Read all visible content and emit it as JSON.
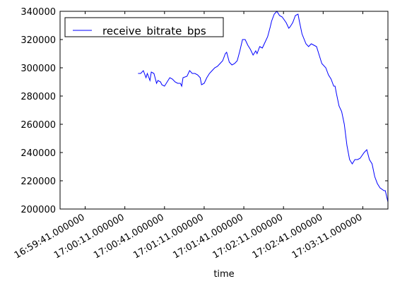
{
  "chart_data": {
    "type": "line",
    "xlabel": "time",
    "x": [
      "17:00:21",
      "17:00:23",
      "17:00:25",
      "17:00:27",
      "17:00:28",
      "17:00:30",
      "17:00:31",
      "17:00:33",
      "17:00:35",
      "17:00:36",
      "17:00:38",
      "17:00:39",
      "17:00:41",
      "17:00:43",
      "17:00:45",
      "17:00:47",
      "17:00:49",
      "17:00:51",
      "17:00:53",
      "17:00:54",
      "17:00:55",
      "17:00:58",
      "17:01:00",
      "17:01:02",
      "17:01:04",
      "17:01:06",
      "17:01:08",
      "17:01:09",
      "17:01:11",
      "17:01:13",
      "17:01:15",
      "17:01:17",
      "17:01:19",
      "17:01:21",
      "17:01:23",
      "17:01:25",
      "17:01:27",
      "17:01:28",
      "17:01:30",
      "17:01:32",
      "17:01:34",
      "17:01:36",
      "17:01:38",
      "17:01:40",
      "17:01:42",
      "17:01:44",
      "17:01:46",
      "17:01:48",
      "17:01:50",
      "17:01:51",
      "17:01:53",
      "17:01:55",
      "17:01:57",
      "17:01:59",
      "17:02:01",
      "17:02:02",
      "17:02:04",
      "17:02:06",
      "17:02:08",
      "17:02:10",
      "17:02:13",
      "17:02:15",
      "17:02:16",
      "17:02:18",
      "17:02:20",
      "17:02:22",
      "17:02:23",
      "17:02:25",
      "17:02:28",
      "17:02:30",
      "17:02:32",
      "17:02:34",
      "17:02:36",
      "17:02:38",
      "17:02:40",
      "17:02:43",
      "17:02:45",
      "17:02:47",
      "17:02:49",
      "17:02:50",
      "17:02:51",
      "17:02:53",
      "17:02:55",
      "17:02:57",
      "17:02:59",
      "17:03:01",
      "17:03:03",
      "17:03:05",
      "17:03:07",
      "17:03:09",
      "17:03:12",
      "17:03:14",
      "17:03:16",
      "17:03:18",
      "17:03:20",
      "17:03:22",
      "17:03:24",
      "17:03:27",
      "17:03:28",
      "17:03:30"
    ],
    "series": [
      {
        "name": "receive_bitrate_bps",
        "color": "#0000ff",
        "values": [
          296000,
          296000,
          298000,
          293000,
          296000,
          291000,
          297000,
          296000,
          289000,
          291000,
          290000,
          288000,
          287000,
          290000,
          293000,
          292000,
          290000,
          289000,
          289000,
          287000,
          293000,
          294000,
          298000,
          296000,
          296000,
          295000,
          293000,
          288000,
          289000,
          293000,
          296000,
          298000,
          300000,
          301000,
          303000,
          305000,
          310000,
          311000,
          304000,
          302000,
          303000,
          305000,
          312000,
          320000,
          320000,
          316000,
          313000,
          309000,
          312000,
          310000,
          315000,
          314000,
          318000,
          322000,
          329000,
          333000,
          338000,
          340000,
          337000,
          336000,
          332000,
          328000,
          329000,
          332000,
          337000,
          338000,
          333000,
          324000,
          317000,
          315000,
          317000,
          316000,
          315000,
          309000,
          303000,
          300000,
          295000,
          292000,
          287000,
          287000,
          282000,
          273000,
          269000,
          260000,
          245000,
          235000,
          232000,
          235000,
          235000,
          236000,
          240000,
          242000,
          235000,
          232000,
          223000,
          218000,
          215000,
          213000,
          213000,
          205000
        ]
      }
    ],
    "xlim": [
      "16:59:22",
      "17:03:30"
    ],
    "xticks": [
      "16:59:41.000000",
      "17:00:11.000000",
      "17:00:41.000000",
      "17:01:11.000000",
      "17:01:41.000000",
      "17:02:11.000000",
      "17:02:41.000000",
      "17:03:11.000000"
    ],
    "ylim": [
      200000,
      340000
    ],
    "yticks": [
      200000,
      220000,
      240000,
      260000,
      280000,
      300000,
      320000,
      340000
    ],
    "legend": "upper left"
  }
}
